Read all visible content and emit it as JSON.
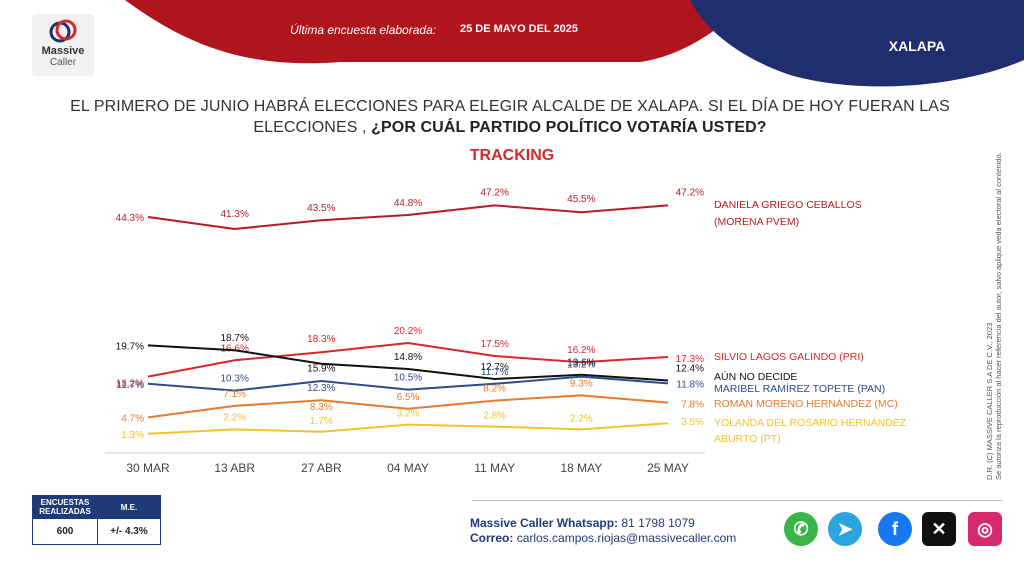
{
  "header": {
    "survey_label": "Última encuesta elaborada:",
    "survey_date": "25 DE MAYO DEL 2025",
    "city": "XALAPA",
    "logo_name": "Massive",
    "logo_sub": "Caller"
  },
  "question": {
    "part1": "EL PRIMERO DE JUNIO HABRÁ ELECCIONES PARA ELEGIR ALCALDE DE XALAPA. SI EL DÍA DE HOY FUERAN LAS ELECCIONES ,",
    "part2": "¿POR CUÁL PARTIDO POLÍTICO VOTARÍA USTED?"
  },
  "side_note": {
    "line1": "D.R. (C) MASSIVE CALLER S.A DE C.V., 2023",
    "line2": "Se autoriza la reproducción al hacer referencia del autor, salvo aplique veda electoral al contenido."
  },
  "stats": {
    "col1_header_line1": "ENCUESTAS",
    "col1_header_line2": "REALIZADAS",
    "col2_header": "M.E.",
    "sample": "600",
    "margin": "+/- 4.3%"
  },
  "contact": {
    "whatsapp_label": "Massive Caller Whatsapp:",
    "whatsapp_number": "81 1798 1079",
    "email_label": "Correo:",
    "email": "carlos.campos.riojas@massivecaller.com"
  },
  "social": [
    {
      "icon": "whatsapp-icon",
      "glyph": "✆",
      "color": "#3bb54a"
    },
    {
      "icon": "telegram-icon",
      "glyph": "➤",
      "color": "#2aa3de"
    },
    {
      "icon": "facebook-icon",
      "glyph": "f",
      "color": "#1877f2"
    },
    {
      "icon": "x-icon",
      "glyph": "✕",
      "color": "#111111"
    },
    {
      "icon": "instagram-icon",
      "glyph": "◎",
      "color": "#d6296f"
    }
  ],
  "chart_data": {
    "type": "line",
    "title": "TRACKING",
    "categories": [
      "30 MAR",
      "13 ABR",
      "27 ABR",
      "04 MAY",
      "11 MAY",
      "18 MAY",
      "25 MAY"
    ],
    "series": [
      {
        "name": "DANIELA GRIEGO CEBALLOS (MORENA PVEM)",
        "legend_line1": "DANIELA GRIEGO CEBALLOS",
        "legend_line2": "(MORENA PVEM)",
        "color": "#b81b22",
        "values": [
          44.3,
          41.3,
          43.5,
          44.8,
          47.2,
          45.5,
          47.2
        ]
      },
      {
        "name": "SILVIO LAGOS GALINDO (PRI)",
        "legend_line1": "SILVIO LAGOS GALINDO (PRI)",
        "color": "#d9262b",
        "values": [
          13.2,
          16.6,
          18.3,
          20.2,
          17.5,
          16.2,
          17.3
        ]
      },
      {
        "name": "AÚN NO DECIDE",
        "legend_line1": "AÚN NO DECIDE",
        "color": "#111111",
        "values": [
          19.7,
          18.7,
          15.9,
          14.8,
          12.7,
          13.6,
          12.4
        ]
      },
      {
        "name": "MARIBEL RAMÍREZ TOPETE (PAN)",
        "legend_line1": "MARIBEL RAMÍREZ TOPETE (PAN)",
        "color": "#2e4b8a",
        "values": [
          11.7,
          10.3,
          12.3,
          10.5,
          11.7,
          13.2,
          11.8
        ]
      },
      {
        "name": "ROMÁN MORENO HERNÁNDEZ (MC)",
        "legend_line1": "ROMÁN MORENO HERNÁNDEZ (MC)",
        "color": "#e57a2e",
        "values": [
          4.7,
          7.1,
          8.3,
          6.5,
          8.2,
          9.3,
          7.8
        ]
      },
      {
        "name": "YOLANDA DEL ROSARIO HERNÁNDEZ ABURTO (PT)",
        "legend_line1": "YOLANDA DEL ROSARIO HERNÁNDEZ",
        "legend_line2": "ABURTO (PT)",
        "color": "#f2c230",
        "values": [
          1.3,
          2.2,
          1.7,
          3.2,
          2.8,
          2.2,
          3.5
        ]
      }
    ],
    "value_labels": [
      [
        "44.3%",
        "41.3%",
        "43.5%",
        "44.8%",
        "47.2%",
        "45.5%",
        "47.2%"
      ],
      [
        "13.2%",
        "16.6%",
        "18.3%",
        "20.2%",
        "17.5%",
        "16.2%",
        "17.3%"
      ],
      [
        "19.7%",
        "18.7%",
        "15.9%",
        "14.8%",
        "12.7%",
        "13.6%",
        "12.4%"
      ],
      [
        "11.7%",
        "10.3%",
        "12.3%",
        "10.5%",
        "11.7%",
        "13.2%",
        "11.8%"
      ],
      [
        "4.7%",
        "7.1%",
        "8.3%",
        "6.5%",
        "8.2%",
        "9.3%",
        "7.8%"
      ],
      [
        "1.3%",
        "2.2%",
        "1.7%",
        "3.2%",
        "2.8%",
        "2.2%",
        "3.5%"
      ]
    ],
    "grid": false,
    "legend": "right"
  }
}
